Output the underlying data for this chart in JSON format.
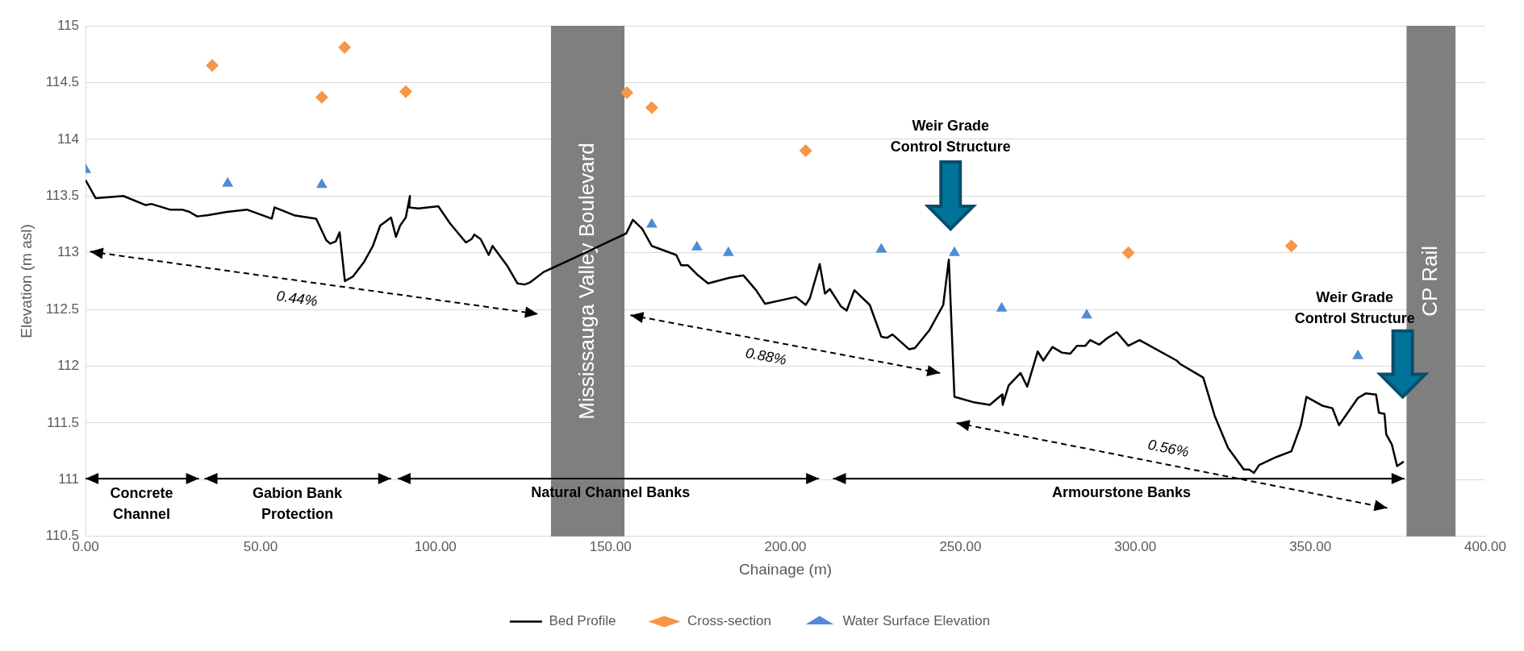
{
  "chart_data": {
    "type": "line",
    "xlabel": "Chainage (m)",
    "ylabel": "Elevation (m asl)",
    "xlim": [
      0,
      400
    ],
    "xticks": [
      {
        "value": 0,
        "label": "0.00"
      },
      {
        "value": 50,
        "label": "50.00"
      },
      {
        "value": 100,
        "label": "100.00"
      },
      {
        "value": 150,
        "label": "150.00"
      },
      {
        "value": 200,
        "label": "200.00"
      },
      {
        "value": 250,
        "label": "250.00"
      },
      {
        "value": 300,
        "label": "300.00"
      },
      {
        "value": 350,
        "label": "350.00"
      },
      {
        "value": 400,
        "label": "400.00"
      }
    ],
    "ylim": [
      110.5,
      115
    ],
    "yticks": [
      110.5,
      111,
      111.5,
      112,
      112.5,
      113,
      113.5,
      114,
      114.5,
      115
    ],
    "grid": "y",
    "legend": "bottom",
    "series": [
      {
        "name": "Bed Profile",
        "marker": "none",
        "color": "#000000",
        "x": [
          0,
          2.9,
          10.8,
          17.2,
          18.8,
          24.1,
          27.6,
          29.7,
          31.9,
          34.7,
          40.4,
          46.1,
          53.2,
          54.0,
          59.6,
          65.9,
          68.8,
          69.9,
          71.5,
          72.6,
          74.1,
          76.4,
          79.6,
          82.1,
          84.2,
          87.3,
          88.7,
          89.9,
          91.5,
          92.7,
          92.5,
          95.1,
          100.8,
          104.1,
          108.7,
          110.3,
          111.1,
          112.9,
          115.2,
          116.3,
          120.6,
          123.4,
          125.5,
          127.1,
          130.9,
          140.0,
          154.5,
          156.4,
          159.1,
          161.8,
          168.8,
          170.2,
          172.1,
          174.7,
          177.9,
          184.0,
          188.0,
          191.6,
          194.2,
          203.0,
          205.8,
          207.0,
          209.8,
          211.3,
          212.7,
          215.8,
          217.5,
          219.7,
          224.1,
          227.4,
          229.0,
          230.6,
          235.3,
          237.0,
          241.2,
          245.1,
          246.7,
          248.3,
          254.1,
          258.4,
          261.9,
          262.1,
          263.8,
          267.2,
          269.1,
          272.1,
          273.7,
          276.3,
          279.0,
          281.4,
          283.3,
          285.7,
          287.1,
          289.7,
          292.1,
          294.7,
          298.0,
          301.2,
          311.8,
          312.8,
          319.4,
          322.7,
          326.5,
          331.0,
          332.5,
          333.9,
          335.4,
          340.3,
          344.6,
          347.3,
          348.9,
          353.6,
          356.3,
          358.2,
          363.6,
          365.8,
          368.8,
          369.6,
          371.2,
          371.7,
          373.3,
          374.8,
          376.7
        ],
        "values": [
          113.64,
          113.48,
          113.5,
          113.42,
          113.43,
          113.38,
          113.38,
          113.36,
          113.32,
          113.33,
          113.36,
          113.38,
          113.3,
          113.4,
          113.33,
          113.3,
          113.11,
          113.08,
          113.1,
          113.18,
          112.75,
          112.79,
          112.92,
          113.06,
          113.24,
          113.31,
          113.14,
          113.24,
          113.31,
          113.5,
          113.4,
          113.39,
          113.41,
          113.26,
          113.09,
          113.12,
          113.16,
          113.12,
          112.98,
          113.06,
          112.88,
          112.73,
          112.72,
          112.74,
          112.83,
          112.96,
          113.17,
          113.29,
          113.21,
          113.06,
          112.98,
          112.89,
          112.89,
          112.81,
          112.73,
          112.78,
          112.8,
          112.67,
          112.55,
          112.61,
          112.54,
          112.6,
          112.9,
          112.64,
          112.68,
          112.53,
          112.49,
          112.67,
          112.54,
          112.26,
          112.25,
          112.28,
          112.15,
          112.16,
          112.32,
          112.54,
          112.94,
          111.73,
          111.68,
          111.66,
          111.75,
          111.66,
          111.83,
          111.94,
          111.82,
          112.13,
          112.05,
          112.17,
          112.12,
          112.11,
          112.18,
          112.18,
          112.23,
          112.19,
          112.25,
          112.3,
          112.18,
          112.23,
          112.05,
          112.02,
          111.9,
          111.56,
          111.28,
          111.09,
          111.09,
          111.06,
          111.13,
          111.2,
          111.25,
          111.48,
          111.73,
          111.65,
          111.63,
          111.48,
          111.72,
          111.76,
          111.75,
          111.59,
          111.58,
          111.4,
          111.31,
          111.12,
          111.16
        ]
      },
      {
        "name": "Cross-section",
        "type": "scatter",
        "marker": "diamond",
        "color": "#f79646",
        "x": [
          36.2,
          67.5,
          74.0,
          91.5,
          154.7,
          161.8,
          205.8,
          298.0,
          344.6
        ],
        "values": [
          114.65,
          114.37,
          114.81,
          114.42,
          114.41,
          114.28,
          113.9,
          113.0,
          113.06
        ]
      },
      {
        "name": "Water Surface Elevation",
        "type": "scatter",
        "marker": "triangle",
        "color": "#4f8bd6",
        "x": [
          0,
          40.6,
          67.5,
          161.8,
          174.7,
          183.7,
          227.4,
          248.3,
          261.8,
          286.1,
          363.6
        ],
        "values": [
          113.73,
          113.61,
          113.6,
          113.25,
          113.05,
          113.0,
          113.03,
          113.0,
          112.51,
          112.45,
          112.09
        ]
      }
    ],
    "bands": [
      {
        "axis": "x",
        "from": 133,
        "to": 154,
        "label": "Mississauga Valley Boulevard",
        "color": "#7f7f7f"
      },
      {
        "axis": "x",
        "from": 377.5,
        "to": 391.5,
        "label": "CP Rail",
        "color": "#7f7f7f"
      }
    ],
    "annotations": [
      "0.44%",
      "0.88%",
      "0.56%",
      "Concrete\nChannel",
      "Gabion Bank\nProtection",
      "Natural Channel Banks",
      "Armourstone Banks",
      "Weir Grade\nControl Structure",
      "Weir Grade\nControl Structure"
    ]
  }
}
